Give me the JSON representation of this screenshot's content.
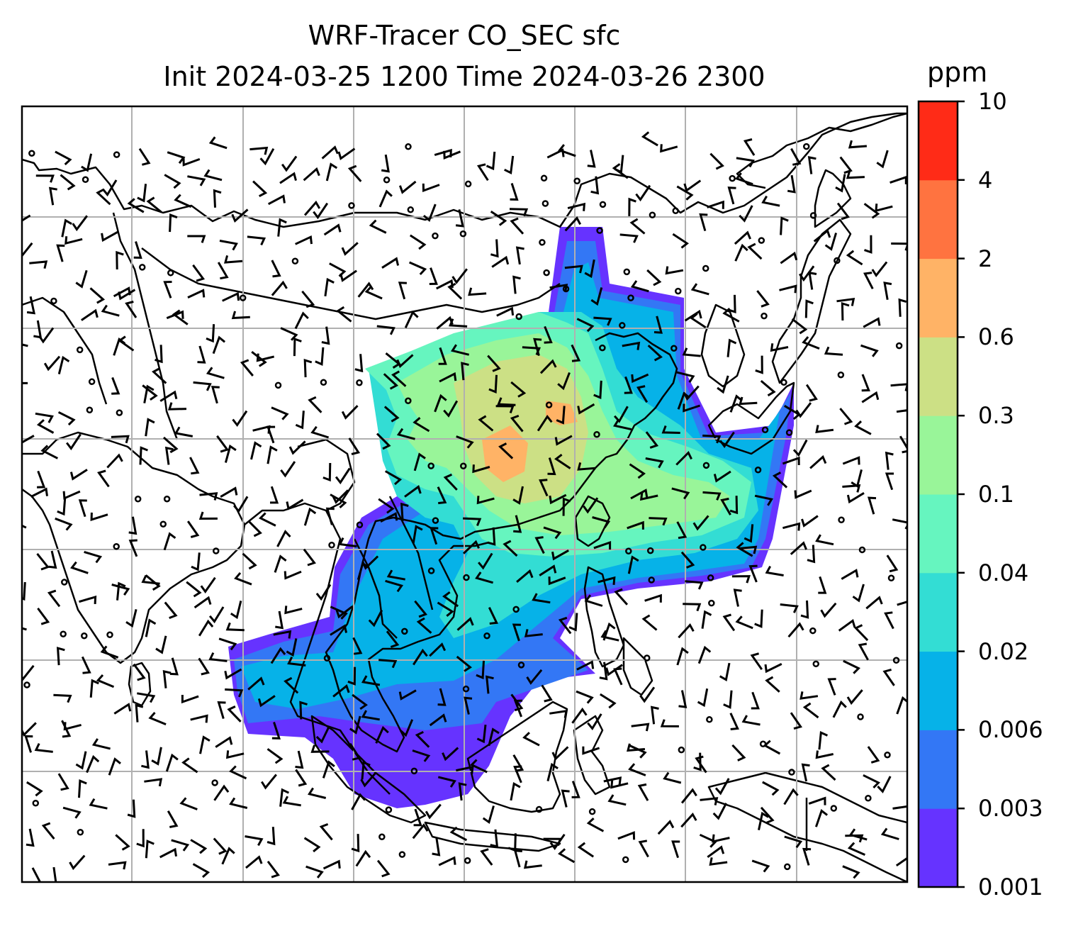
{
  "title": {
    "line1": "WRF-Tracer CO_SEC sfc",
    "line2": "Init 2024-03-25 1200 Time 2024-03-26 2300"
  },
  "colorbar": {
    "unit": "ppm",
    "levels": [
      "0.001",
      "0.003",
      "0.006",
      "0.02",
      "0.04",
      "0.1",
      "0.3",
      "0.6",
      "2",
      "4",
      "10"
    ],
    "colors": [
      "#6633ff",
      "#3377f5",
      "#06b2e8",
      "#33ddd4",
      "#66f5bf",
      "#99f599",
      "#cce085",
      "#ffb366",
      "#ff7340",
      "#ff2b17"
    ]
  },
  "map": {
    "gridlines": true,
    "grid_color": "#b0b0b0",
    "coastline_color": "#000000",
    "field": "CO_SEC tracer concentration (surface)",
    "overlay": "wind barbs and calm-wind circles"
  }
}
